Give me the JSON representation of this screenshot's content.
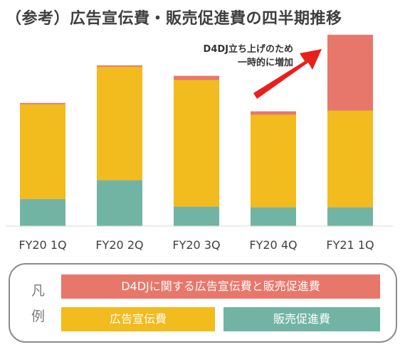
{
  "title": "（参考）広告宣伝費・販売促進費の四半期推移",
  "chart_data": {
    "type": "bar",
    "stacked": true,
    "categories": [
      "FY20 1Q",
      "FY20 2Q",
      "FY20 3Q",
      "FY20 4Q",
      "FY21 1Q"
    ],
    "series": [
      {
        "name": "販売促進費",
        "color": "#72b4a4",
        "values": [
          39,
          66,
          28,
          27,
          27
        ]
      },
      {
        "name": "広告宣伝費",
        "color": "#f2bb1e",
        "values": [
          136,
          163,
          182,
          133,
          139
        ]
      },
      {
        "name": "D4DJに関する広告宣伝費と販売促進費",
        "color": "#e8776b",
        "values": [
          2,
          2,
          6,
          5,
          109
        ]
      }
    ],
    "ylim": [
      0,
      280
    ],
    "grid": false,
    "annotation": {
      "lines": [
        "D4DJ立ち上げのため",
        "一時的に増加"
      ],
      "arrow_color": "#e8201c"
    }
  },
  "legend": {
    "heading_chars": [
      "凡",
      "例"
    ],
    "items": [
      {
        "label": "D4DJに関する広告宣伝費と販売促進費",
        "color": "#e8776b"
      },
      {
        "label": "広告宣伝費",
        "color": "#f2bb1e"
      },
      {
        "label": "販売促進費",
        "color": "#72b4a4"
      }
    ]
  }
}
